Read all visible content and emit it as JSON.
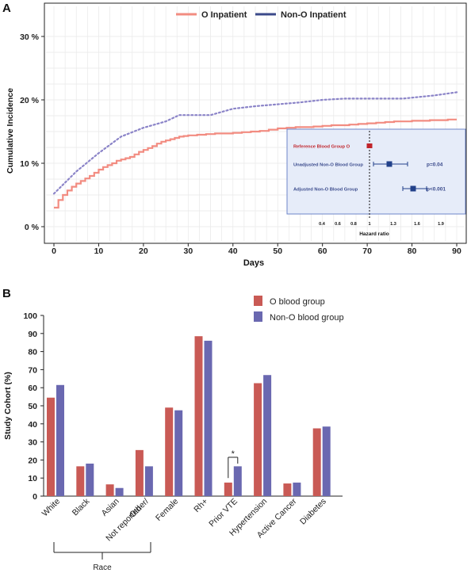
{
  "colors": {
    "o": "#F28C81",
    "nono": "#8B84C8",
    "o_bar": "#C95A55",
    "nono_bar": "#6A68B0",
    "legend_nono_line": "#3B4A8A",
    "forest_bg": "#E6ECF9",
    "forest_border": "#6E86C9",
    "forest_ref": "#C0242B",
    "forest_marker": "#22418A",
    "forest_label_ref": "#C0242B",
    "forest_label": "#3A4A8C",
    "grid": "#E8E8E8",
    "axis": "#222222"
  },
  "chart_data": [
    {
      "panel": "A",
      "type": "line",
      "ylabel": "Cumulative Incidence",
      "xlabel": "Days",
      "xlim": [
        0,
        90
      ],
      "ylim": [
        0,
        30
      ],
      "xticks": [
        0,
        10,
        20,
        30,
        40,
        50,
        60,
        70,
        80,
        90
      ],
      "xtick_labels": [
        "0",
        "10",
        "20",
        "30",
        "40",
        "50",
        "60",
        "70",
        "80",
        "90"
      ],
      "yticks": [
        0,
        10,
        20,
        30
      ],
      "ytick_labels": [
        "0 %",
        "10 %",
        "20 %",
        "30 %"
      ],
      "legend_position": "top",
      "grid": true,
      "series": [
        {
          "name": "O Inpatient",
          "style": "solid-step",
          "x": [
            0,
            1,
            2,
            3,
            4,
            5,
            6,
            7,
            8,
            9,
            10,
            11,
            12,
            13,
            14,
            15,
            16,
            17,
            18,
            19,
            20,
            21,
            22,
            23,
            24,
            25,
            26,
            27,
            28,
            29,
            30,
            32,
            34,
            36,
            38,
            40,
            42,
            44,
            46,
            48,
            50,
            52,
            54,
            56,
            58,
            60,
            62,
            64,
            66,
            68,
            70,
            72,
            74,
            76,
            78,
            80,
            82,
            84,
            86,
            88,
            90
          ],
          "y": [
            3.0,
            4.2,
            5.0,
            5.7,
            6.3,
            6.8,
            7.2,
            7.6,
            8.0,
            8.5,
            9.0,
            9.4,
            9.7,
            10.0,
            10.4,
            10.6,
            10.8,
            11.0,
            11.4,
            11.8,
            12.1,
            12.4,
            12.7,
            13.1,
            13.4,
            13.6,
            13.8,
            14.0,
            14.2,
            14.3,
            14.4,
            14.5,
            14.6,
            14.7,
            14.7,
            14.8,
            14.9,
            15.0,
            15.1,
            15.3,
            15.5,
            15.6,
            15.7,
            15.7,
            15.8,
            15.9,
            16.0,
            16.0,
            16.1,
            16.2,
            16.3,
            16.4,
            16.5,
            16.6,
            16.6,
            16.7,
            16.7,
            16.8,
            16.8,
            16.9,
            16.9
          ]
        },
        {
          "name": "Non-O Inpatient",
          "style": "dotted",
          "x": [
            0,
            5,
            10,
            15,
            20,
            25,
            28,
            35,
            40,
            45,
            50,
            55,
            60,
            65,
            70,
            78,
            85,
            90
          ],
          "y": [
            5.2,
            8.7,
            11.6,
            14.2,
            15.6,
            16.6,
            17.6,
            17.6,
            18.6,
            19.0,
            19.3,
            19.6,
            20.0,
            20.2,
            20.2,
            20.2,
            20.7,
            21.2
          ]
        }
      ]
    },
    {
      "panel": "A-inset",
      "type": "forest",
      "xlabel": "Hazard ratio",
      "xticks": [
        0.4,
        0.6,
        0.8,
        1,
        1.3,
        1.6,
        1.9
      ],
      "xtick_labels": [
        "0.4",
        "0.6",
        "0.8",
        "1",
        "1.3",
        "1.6",
        "1.9"
      ],
      "reference_line": 1,
      "rows": [
        {
          "label": "Reference Blood Group O",
          "hr": 1.0,
          "ci": [
            1.0,
            1.0
          ],
          "p": ""
        },
        {
          "label": "Unadjusted Non-O Blood Group",
          "hr": 1.25,
          "ci": [
            1.05,
            1.48
          ],
          "p": "p=0.04"
        },
        {
          "label": "Adjusted Non-O Blood Group",
          "hr": 1.55,
          "ci": [
            1.42,
            1.72
          ],
          "p": "p<0.001"
        }
      ]
    },
    {
      "panel": "B",
      "type": "bar",
      "ylabel": "Study Cohort (%)",
      "ylim": [
        0,
        100
      ],
      "yticks": [
        0,
        10,
        20,
        30,
        40,
        50,
        60,
        70,
        80,
        90,
        100
      ],
      "ytick_labels": [
        "0",
        "10",
        "20",
        "30",
        "40",
        "50",
        "60",
        "70",
        "80",
        "90",
        "100"
      ],
      "legend_position": "top-right",
      "grid": false,
      "categories": [
        "White",
        "Black",
        "Asian",
        "Other/ Not reported",
        "Female",
        "Rh+",
        "Prior VTE",
        "Hypertension",
        "Active Cancer",
        "Diabetes"
      ],
      "category_lines": [
        [
          "White"
        ],
        [
          "Black"
        ],
        [
          "Asian"
        ],
        [
          "Other/",
          "Not reported"
        ],
        [
          "Female"
        ],
        [
          "Rh+"
        ],
        [
          "Prior VTE"
        ],
        [
          "Hypertension"
        ],
        [
          "Active Cancer"
        ],
        [
          "Diabetes"
        ]
      ],
      "series": [
        {
          "name": "O blood group",
          "values": [
            54.5,
            16.5,
            6.5,
            25.5,
            49,
            88.5,
            7.5,
            62.5,
            7,
            37.5
          ]
        },
        {
          "name": "Non-O blood group",
          "values": [
            61.5,
            18,
            4.5,
            16.5,
            47.5,
            86,
            16.5,
            67,
            7.5,
            38.5
          ]
        }
      ],
      "annotations": [
        {
          "category": "Prior VTE",
          "text": "*"
        }
      ],
      "group_bracket": {
        "categories": [
          "White",
          "Black",
          "Asian",
          "Other/ Not reported"
        ],
        "label": "Race"
      }
    }
  ],
  "panel_labels": [
    "A",
    "B"
  ]
}
